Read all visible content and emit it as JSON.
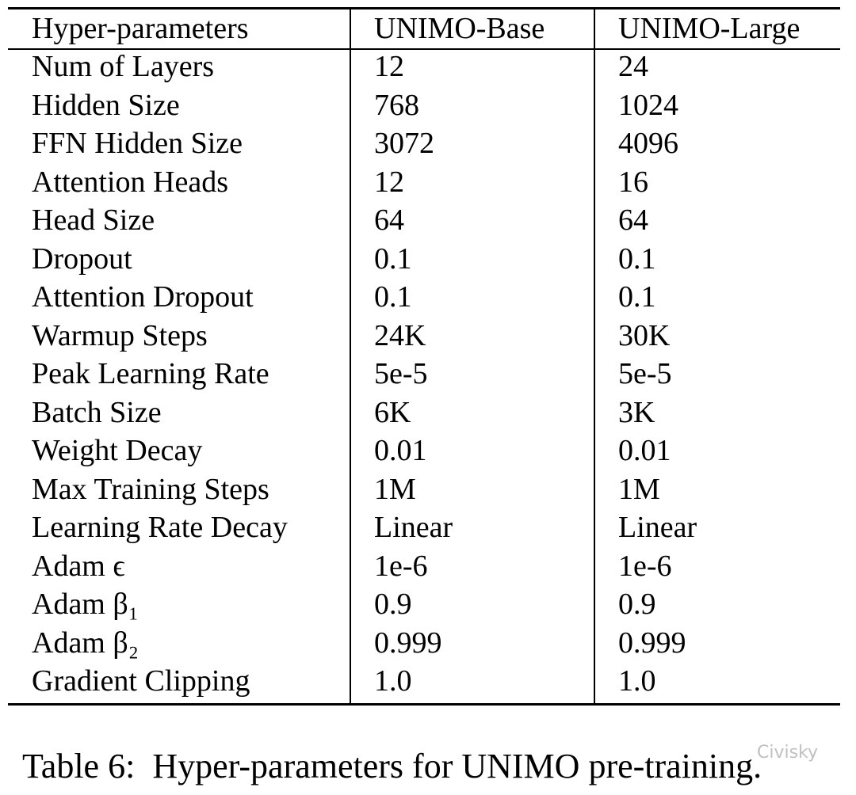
{
  "table": {
    "header": [
      "Hyper-parameters",
      "UNIMO-Base",
      "UNIMO-Large"
    ],
    "rows": [
      [
        "Num of Layers",
        "12",
        "24"
      ],
      [
        "Hidden Size",
        "768",
        "1024"
      ],
      [
        "FFN Hidden Size",
        "3072",
        "4096"
      ],
      [
        "Attention Heads",
        "12",
        "16"
      ],
      [
        "Head Size",
        "64",
        "64"
      ],
      [
        "Dropout",
        "0.1",
        "0.1"
      ],
      [
        "Attention Dropout",
        "0.1",
        "0.1"
      ],
      [
        "Warmup Steps",
        "24K",
        "30K"
      ],
      [
        "Peak Learning Rate",
        "5e-5",
        "5e-5"
      ],
      [
        "Batch Size",
        "6K",
        "3K"
      ],
      [
        "Weight Decay",
        "0.01",
        "0.01"
      ],
      [
        "Max Training Steps",
        "1M",
        "1M"
      ],
      [
        "Learning Rate Decay",
        "Linear",
        "Linear"
      ],
      [
        "Adam ϵ",
        "1e-6",
        "1e-6"
      ],
      [
        "Adam β₁",
        "0.9",
        "0.9"
      ],
      [
        "Adam β₂",
        "0.999",
        "0.999"
      ],
      [
        "Gradient Clipping",
        "1.0",
        "1.0"
      ]
    ]
  },
  "caption": "Table 6:  Hyper-parameters for UNIMO pre-training.",
  "watermark": "Civisky"
}
